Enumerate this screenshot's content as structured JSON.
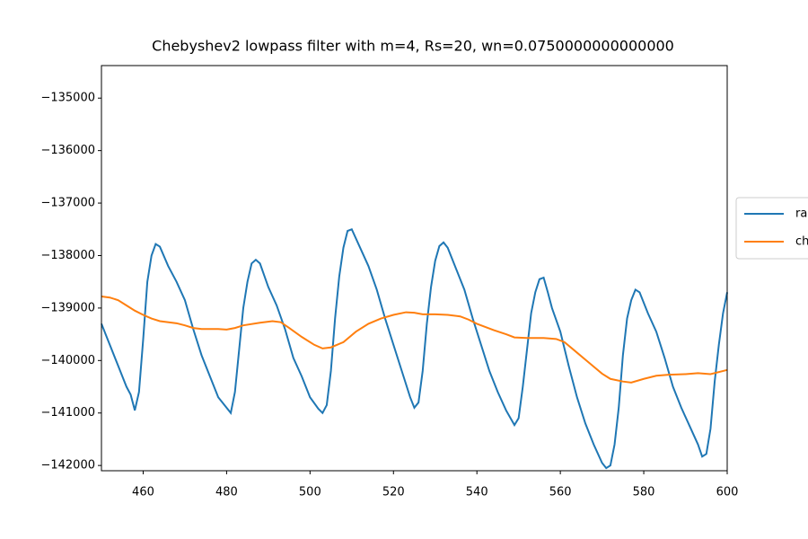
{
  "chart_data": {
    "type": "line",
    "title": "Chebyshev2 lowpass filter with m=4, Rs=20, wn=0.0750000000000000",
    "xlim": [
      450,
      600
    ],
    "xticks": [
      460,
      480,
      500,
      520,
      540,
      560,
      580,
      600
    ],
    "ylim": [
      -142100,
      -134380
    ],
    "yticks": [
      {
        "value": -142000,
        "label": "−142000"
      },
      {
        "value": -141000,
        "label": "−141000"
      },
      {
        "value": -140000,
        "label": "−140000"
      },
      {
        "value": -139000,
        "label": "−139000"
      },
      {
        "value": -138000,
        "label": "−138000"
      },
      {
        "value": -137000,
        "label": "−137000"
      },
      {
        "value": -136000,
        "label": "−136000"
      },
      {
        "value": -135000,
        "label": "−135000"
      }
    ],
    "legend": "right",
    "series": [
      {
        "name": "ra",
        "color": "#1f77b4",
        "x": [
          450,
          452,
          454,
          456,
          457,
          458,
          459,
          460,
          461,
          462,
          463,
          464,
          466,
          468,
          470,
          472,
          474,
          476,
          478,
          480,
          481,
          482,
          483,
          484,
          485,
          486,
          487,
          488,
          490,
          492,
          494,
          496,
          498,
          500,
          502,
          503,
          504,
          505,
          506,
          507,
          508,
          509,
          510,
          512,
          514,
          516,
          518,
          520,
          522,
          524,
          525,
          526,
          527,
          528,
          529,
          530,
          531,
          532,
          533,
          535,
          537,
          539,
          541,
          543,
          545,
          547,
          549,
          550,
          551,
          552,
          553,
          554,
          555,
          556,
          557,
          558,
          560,
          562,
          564,
          566,
          568,
          570,
          571,
          572,
          573,
          574,
          575,
          576,
          577,
          578,
          579,
          581,
          583,
          585,
          587,
          589,
          591,
          593,
          594,
          595,
          596,
          597,
          598,
          599,
          600
        ],
        "values": [
          -139300,
          -139700,
          -140100,
          -140500,
          -140650,
          -140950,
          -140600,
          -139600,
          -138500,
          -138000,
          -137780,
          -137830,
          -138200,
          -138500,
          -138850,
          -139400,
          -139900,
          -140300,
          -140700,
          -140900,
          -141000,
          -140600,
          -139800,
          -139000,
          -138500,
          -138150,
          -138080,
          -138150,
          -138600,
          -138950,
          -139400,
          -139950,
          -140300,
          -140700,
          -140920,
          -141000,
          -140850,
          -140200,
          -139200,
          -138400,
          -137850,
          -137530,
          -137500,
          -137850,
          -138200,
          -138650,
          -139200,
          -139700,
          -140200,
          -140700,
          -140900,
          -140800,
          -140200,
          -139300,
          -138600,
          -138100,
          -137820,
          -137750,
          -137850,
          -138250,
          -138650,
          -139200,
          -139700,
          -140200,
          -140600,
          -140950,
          -141230,
          -141100,
          -140500,
          -139800,
          -139100,
          -138700,
          -138450,
          -138420,
          -138700,
          -139000,
          -139450,
          -140100,
          -140700,
          -141200,
          -141600,
          -141950,
          -142050,
          -142000,
          -141600,
          -140900,
          -139900,
          -139200,
          -138850,
          -138650,
          -138700,
          -139100,
          -139450,
          -139950,
          -140500,
          -140900,
          -141250,
          -141600,
          -141830,
          -141780,
          -141300,
          -140400,
          -139700,
          -139100,
          -138700
        ]
      },
      {
        "name": "ch",
        "color": "#ff7f0e",
        "x": [
          450,
          452,
          454,
          456,
          458,
          460,
          462,
          464,
          468,
          470,
          472,
          474,
          478,
          480,
          482,
          484,
          488,
          491,
          493,
          495,
          498,
          501,
          503,
          505,
          508,
          511,
          514,
          517,
          520,
          523,
          525,
          527,
          530,
          533,
          536,
          538,
          540,
          544,
          547,
          549,
          552,
          556,
          559,
          561,
          564,
          567,
          570,
          572,
          575,
          577,
          580,
          583,
          586,
          590,
          593,
          596,
          600
        ],
        "values": [
          -138780,
          -138800,
          -138850,
          -138950,
          -139050,
          -139130,
          -139200,
          -139250,
          -139290,
          -139330,
          -139380,
          -139400,
          -139400,
          -139410,
          -139380,
          -139330,
          -139280,
          -139250,
          -139270,
          -139380,
          -139550,
          -139700,
          -139770,
          -139750,
          -139650,
          -139450,
          -139300,
          -139200,
          -139130,
          -139080,
          -139090,
          -139120,
          -139120,
          -139130,
          -139160,
          -139220,
          -139300,
          -139420,
          -139500,
          -139560,
          -139570,
          -139570,
          -139590,
          -139650,
          -139850,
          -140050,
          -140250,
          -140350,
          -140400,
          -140420,
          -140350,
          -140290,
          -140270,
          -140260,
          -140240,
          -140260,
          -140180
        ]
      }
    ]
  }
}
